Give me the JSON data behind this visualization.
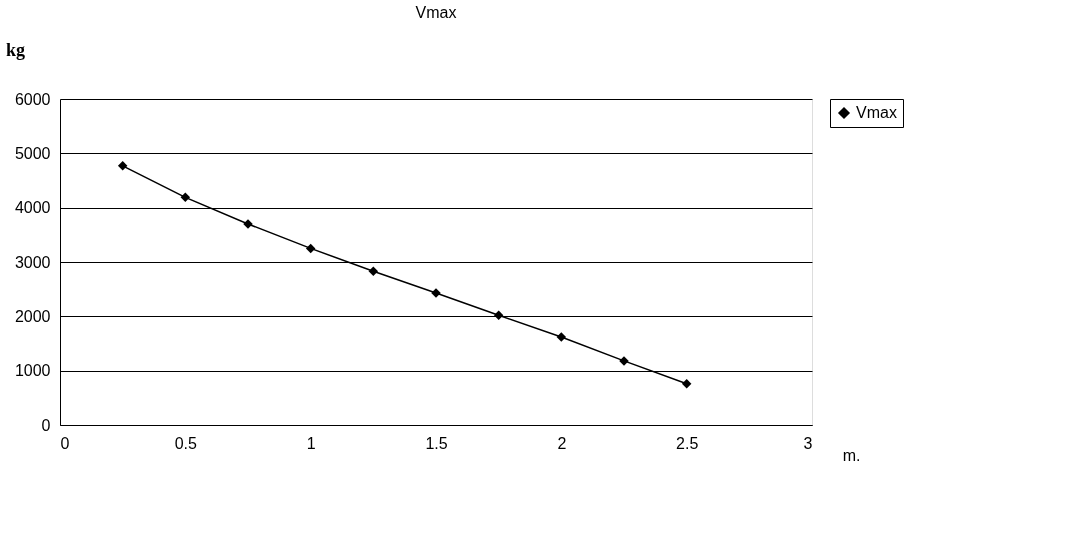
{
  "chart_data": {
    "type": "line",
    "title": "Vmax",
    "xlabel": "m.",
    "ylabel": "kg",
    "x": [
      0.25,
      0.5,
      0.75,
      1.0,
      1.25,
      1.5,
      1.75,
      2.0,
      2.25,
      2.5
    ],
    "series": [
      {
        "name": "Vmax",
        "color": "#000000",
        "values": [
          4770,
          4190,
          3700,
          3250,
          2830,
          2430,
          2020,
          1620,
          1180,
          760
        ]
      }
    ],
    "xlim": [
      0,
      3
    ],
    "xticks": [
      0,
      0.5,
      1,
      1.5,
      2,
      2.5,
      3
    ],
    "ylim": [
      0,
      6000
    ],
    "yticks": [
      0,
      1000,
      2000,
      3000,
      4000,
      5000,
      6000
    ],
    "grid": "y",
    "legend": "right",
    "marker": "diamond",
    "line_style": "solid"
  }
}
